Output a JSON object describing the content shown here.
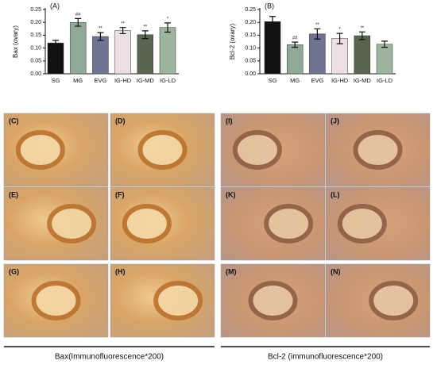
{
  "chart_data": [
    {
      "type": "bar",
      "panel_label": "(A)",
      "ylabel": "Bax (ovary)",
      "categories": [
        "SG",
        "MG",
        "EVG",
        "IG-HD",
        "IG-MD",
        "IG-LD"
      ],
      "values": [
        0.12,
        0.2,
        0.145,
        0.168,
        0.152,
        0.18
      ],
      "errors": [
        0.01,
        0.015,
        0.015,
        0.012,
        0.015,
        0.018
      ],
      "annotations": [
        null,
        "##",
        "**",
        "**",
        "**",
        "*"
      ],
      "colors": [
        "#111111",
        "#8fa996",
        "#6e7490",
        "#ecdfe2",
        "#5a6551",
        "#9db59e"
      ],
      "ylim": [
        0,
        0.25
      ],
      "yticks": [
        {
          "value": 0,
          "label": "0.00"
        },
        {
          "value": 0.05,
          "label": "0.05"
        },
        {
          "value": 0.1,
          "label": "0.10"
        },
        {
          "value": 0.15,
          "label": "0.15"
        },
        {
          "value": 0.2,
          "label": "0.20"
        },
        {
          "value": 0.25,
          "label": "0.25"
        }
      ]
    },
    {
      "type": "bar",
      "panel_label": "(B)",
      "ylabel": "Bcl-2 (ovary)",
      "categories": [
        "SG",
        "MG",
        "EVG",
        "IG-HD",
        "IG-MD",
        "IG-LD"
      ],
      "values": [
        0.203,
        0.113,
        0.155,
        0.137,
        0.148,
        0.115
      ],
      "errors": [
        0.02,
        0.01,
        0.02,
        0.02,
        0.015,
        0.012
      ],
      "annotations": [
        null,
        "##",
        "**",
        "*",
        "**",
        null
      ],
      "colors": [
        "#111111",
        "#8fa996",
        "#6e7490",
        "#ecdfe2",
        "#5a6551",
        "#9db59e"
      ],
      "ylim": [
        0,
        0.25
      ],
      "yticks": [
        {
          "value": 0,
          "label": "0.00"
        },
        {
          "value": 0.05,
          "label": "0.05"
        },
        {
          "value": 0.1,
          "label": "0.10"
        },
        {
          "value": 0.15,
          "label": "0.15"
        },
        {
          "value": 0.2,
          "label": "0.20"
        },
        {
          "value": 0.25,
          "label": "0.25"
        }
      ]
    }
  ],
  "micrographs": [
    {
      "caption": "Bax(Immunofluorescence*200)",
      "panels": [
        "(C)",
        "(D)",
        "(E)",
        "(F)",
        "(G)",
        "(H)"
      ]
    },
    {
      "caption": "Bcl-2 (immunofluorescence*200)",
      "panels": [
        "(I)",
        "(J)",
        "(K)",
        "(L)",
        "(M)",
        "(N)"
      ]
    }
  ]
}
